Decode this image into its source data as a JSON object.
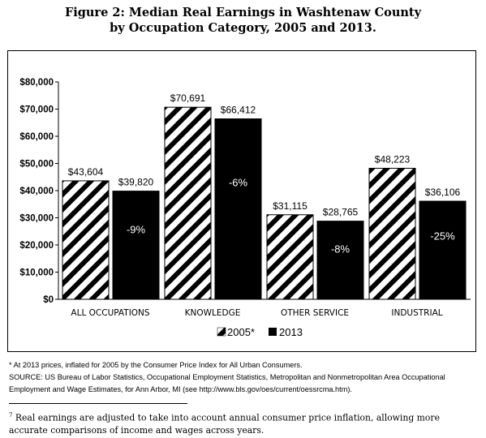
{
  "title_line1": "Figure 2: Median Real Earnings in Washtenaw County",
  "title_line2": "by Occupation Category, 2005 and 2013.",
  "chart_data": {
    "type": "bar",
    "categories": [
      "ALL OCCUPATIONS",
      "KNOWLEDGE",
      "OTHER SERVICE",
      "INDUSTRIAL"
    ],
    "series": [
      {
        "name": "2005*",
        "values": [
          43604,
          70691,
          31115,
          48223
        ],
        "labels": [
          "$43,604",
          "$70,691",
          "$31,115",
          "$48,223"
        ],
        "fill": "hatched"
      },
      {
        "name": "2013",
        "values": [
          39820,
          66412,
          28765,
          36106
        ],
        "labels": [
          "$39,820",
          "$66,412",
          "$28,765",
          "$36,106"
        ],
        "fill": "#000000"
      }
    ],
    "change_labels": [
      "-9%",
      "-6%",
      "-8%",
      "-25%"
    ],
    "ylim": [
      0,
      80000
    ],
    "yticks": [
      0,
      10000,
      20000,
      30000,
      40000,
      50000,
      60000,
      70000,
      80000
    ],
    "ytick_labels": [
      "$0",
      "$10,000",
      "$20,000",
      "$30,000",
      "$40,000",
      "$50,000",
      "$60,000",
      "$70,000",
      "$80,000"
    ],
    "grid": false,
    "legend_position": "bottom"
  },
  "footnote_star": "* At 2013 prices, inflated for 2005 by the Consumer Price Index for All Urban Consumers.",
  "footnote_source_line1": "SOURCE:  US Bureau of Labor Statistics, Occupational Employment Statistics, Metropolitan and Nonmetropolitan Area Occupational",
  "footnote_source_line2": "Employment and Wage Estimates, for Ann Arbor, MI (see http://www.bls.gov/oes/current/oessrcma.htm).",
  "footnote_7_marker": "7",
  "footnote_7_line1": " Real earnings are adjusted to take into account annual consumer price inflation, allowing more",
  "footnote_7_line2": "accurate comparisons of income and wages across years."
}
